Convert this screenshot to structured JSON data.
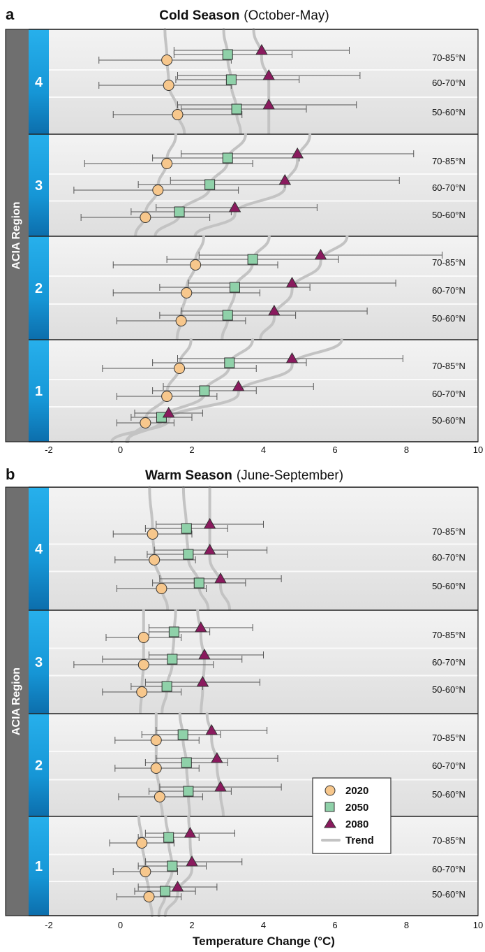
{
  "chart_data": [
    {
      "panel": "a",
      "type": "scatter",
      "title": "Cold Season",
      "subtitle": "(October-May)",
      "xlabel": "",
      "ylabel": "ACIA Region",
      "xlim": [
        -2,
        10
      ],
      "xticks": [
        -2,
        0,
        2,
        4,
        6,
        8,
        10
      ],
      "regions": [
        {
          "region": "4",
          "rows": [
            {
              "label": "70-85°N",
              "2020": {
                "value": 1.3,
                "low": -0.6,
                "high": 3.1
              },
              "2050": {
                "value": 3.0,
                "low": 1.5,
                "high": 4.8
              },
              "2080": {
                "value": 3.95,
                "low": 1.5,
                "high": 6.4
              }
            },
            {
              "label": "60-70°N",
              "2020": {
                "value": 1.35,
                "low": -0.6,
                "high": 3.1
              },
              "2050": {
                "value": 3.1,
                "low": 1.55,
                "high": 5.0
              },
              "2080": {
                "value": 4.15,
                "low": 1.6,
                "high": 6.7
              }
            },
            {
              "label": "50-60°N",
              "2020": {
                "value": 1.6,
                "low": -0.2,
                "high": 3.4
              },
              "2050": {
                "value": 3.25,
                "low": 1.7,
                "high": 5.2
              },
              "2080": {
                "value": 4.15,
                "low": 1.6,
                "high": 6.6
              }
            }
          ]
        },
        {
          "region": "3",
          "rows": [
            {
              "label": "70-85°N",
              "2020": {
                "value": 1.3,
                "low": -1.0,
                "high": 3.7
              },
              "2050": {
                "value": 3.0,
                "low": 0.9,
                "high": 5.0
              },
              "2080": {
                "value": 4.95,
                "low": 1.7,
                "high": 8.2
              }
            },
            {
              "label": "60-70°N",
              "2020": {
                "value": 1.05,
                "low": -1.3,
                "high": 3.3
              },
              "2050": {
                "value": 2.5,
                "low": 0.5,
                "high": 4.6
              },
              "2080": {
                "value": 4.6,
                "low": 1.4,
                "high": 7.8
              }
            },
            {
              "label": "50-60°N",
              "2020": {
                "value": 0.7,
                "low": -1.1,
                "high": 2.5
              },
              "2050": {
                "value": 1.65,
                "low": 0.3,
                "high": 3.1
              },
              "2080": {
                "value": 3.2,
                "low": 1.0,
                "high": 5.5
              }
            }
          ]
        },
        {
          "region": "2",
          "rows": [
            {
              "label": "70-85°N",
              "2020": {
                "value": 2.1,
                "low": -0.2,
                "high": 4.4
              },
              "2050": {
                "value": 3.7,
                "low": 1.3,
                "high": 6.1
              },
              "2080": {
                "value": 5.6,
                "low": 2.2,
                "high": 9.0
              }
            },
            {
              "label": "60-70°N",
              "2020": {
                "value": 1.85,
                "low": -0.2,
                "high": 3.9
              },
              "2050": {
                "value": 3.2,
                "low": 1.1,
                "high": 5.3
              },
              "2080": {
                "value": 4.8,
                "low": 1.9,
                "high": 7.7
              }
            },
            {
              "label": "50-60°N",
              "2020": {
                "value": 1.7,
                "low": -0.1,
                "high": 3.5
              },
              "2050": {
                "value": 3.0,
                "low": 1.1,
                "high": 4.9
              },
              "2080": {
                "value": 4.3,
                "low": 1.7,
                "high": 6.9
              }
            }
          ]
        },
        {
          "region": "1",
          "rows": [
            {
              "label": "70-85°N",
              "2020": {
                "value": 1.65,
                "low": -0.5,
                "high": 3.8
              },
              "2050": {
                "value": 3.05,
                "low": 0.9,
                "high": 5.2
              },
              "2080": {
                "value": 4.8,
                "low": 1.6,
                "high": 7.9
              }
            },
            {
              "label": "60-70°N",
              "2020": {
                "value": 1.3,
                "low": -0.1,
                "high": 2.7
              },
              "2050": {
                "value": 2.35,
                "low": 0.9,
                "high": 3.8
              },
              "2080": {
                "value": 3.3,
                "low": 1.2,
                "high": 5.4
              }
            },
            {
              "label": "50-60°N",
              "2020": {
                "value": 0.7,
                "low": -0.1,
                "high": 1.5
              },
              "2050": {
                "value": 1.15,
                "low": 0.3,
                "high": 2.0
              },
              "2080": {
                "value": 1.35,
                "low": 0.4,
                "high": 2.3
              }
            }
          ]
        }
      ]
    },
    {
      "panel": "b",
      "type": "scatter",
      "title": "Warm Season",
      "subtitle": "(June-September)",
      "xlabel": "Temperature Change (°C)",
      "ylabel": "ACIA Region",
      "xlim": [
        -2,
        10
      ],
      "xticks": [
        -2,
        0,
        2,
        4,
        6,
        8,
        10
      ],
      "legend": {
        "position": "right",
        "entries": [
          "2020",
          "2050",
          "2080",
          "Trend"
        ]
      },
      "regions": [
        {
          "region": "4",
          "rows": [
            {
              "label": "70-85°N",
              "2020": {
                "value": 0.9,
                "low": -0.2,
                "high": 2.0
              },
              "2050": {
                "value": 1.85,
                "low": 0.7,
                "high": 3.0
              },
              "2080": {
                "value": 2.5,
                "low": 1.0,
                "high": 4.0
              }
            },
            {
              "label": "60-70°N",
              "2020": {
                "value": 0.95,
                "low": -0.15,
                "high": 2.1
              },
              "2050": {
                "value": 1.9,
                "low": 0.75,
                "high": 3.0
              },
              "2080": {
                "value": 2.5,
                "low": 0.95,
                "high": 4.1
              }
            },
            {
              "label": "50-60°N",
              "2020": {
                "value": 1.15,
                "low": -0.1,
                "high": 2.4
              },
              "2050": {
                "value": 2.2,
                "low": 0.9,
                "high": 3.5
              },
              "2080": {
                "value": 2.8,
                "low": 1.1,
                "high": 4.5
              }
            }
          ]
        },
        {
          "region": "3",
          "rows": [
            {
              "label": "70-85°N",
              "2020": {
                "value": 0.65,
                "low": -0.4,
                "high": 1.7
              },
              "2050": {
                "value": 1.5,
                "low": 0.8,
                "high": 2.5
              },
              "2080": {
                "value": 2.25,
                "low": 0.8,
                "high": 3.7
              }
            },
            {
              "label": "60-70°N",
              "2020": {
                "value": 0.65,
                "low": -1.3,
                "high": 2.6
              },
              "2050": {
                "value": 1.45,
                "low": -0.5,
                "high": 3.4
              },
              "2080": {
                "value": 2.35,
                "low": 0.8,
                "high": 4.0
              }
            },
            {
              "label": "50-60°N",
              "2020": {
                "value": 0.6,
                "low": -0.5,
                "high": 1.7
              },
              "2050": {
                "value": 1.3,
                "low": 0.3,
                "high": 2.3
              },
              "2080": {
                "value": 2.3,
                "low": 0.7,
                "high": 3.9
              }
            }
          ]
        },
        {
          "region": "2",
          "rows": [
            {
              "label": "70-85°N",
              "2020": {
                "value": 1.0,
                "low": -0.15,
                "high": 2.2
              },
              "2050": {
                "value": 1.75,
                "low": 0.6,
                "high": 2.8
              },
              "2080": {
                "value": 2.55,
                "low": 1.0,
                "high": 4.1
              }
            },
            {
              "label": "60-70°N",
              "2020": {
                "value": 1.0,
                "low": -0.15,
                "high": 2.2
              },
              "2050": {
                "value": 1.85,
                "low": 0.7,
                "high": 3.0
              },
              "2080": {
                "value": 2.7,
                "low": 1.0,
                "high": 4.4
              }
            },
            {
              "label": "50-60°N",
              "2020": {
                "value": 1.1,
                "low": -0.05,
                "high": 2.3
              },
              "2050": {
                "value": 1.9,
                "low": 0.8,
                "high": 3.1
              },
              "2080": {
                "value": 2.8,
                "low": 1.1,
                "high": 4.5
              }
            }
          ]
        },
        {
          "region": "1",
          "rows": [
            {
              "label": "70-85°N",
              "2020": {
                "value": 0.6,
                "low": -0.3,
                "high": 1.5
              },
              "2050": {
                "value": 1.35,
                "low": 0.5,
                "high": 2.2
              },
              "2080": {
                "value": 1.95,
                "low": 0.7,
                "high": 3.2
              }
            },
            {
              "label": "60-70°N",
              "2020": {
                "value": 0.7,
                "low": -0.2,
                "high": 1.6
              },
              "2050": {
                "value": 1.45,
                "low": 0.5,
                "high": 2.4
              },
              "2080": {
                "value": 2.0,
                "low": 0.7,
                "high": 3.4
              }
            },
            {
              "label": "50-60°N",
              "2020": {
                "value": 0.8,
                "low": -0.1,
                "high": 1.7
              },
              "2050": {
                "value": 1.25,
                "low": 0.4,
                "high": 2.1
              },
              "2080": {
                "value": 1.6,
                "low": 0.5,
                "high": 2.7
              }
            }
          ]
        }
      ]
    }
  ],
  "colors": {
    "c2020": "#f7c78c",
    "c2050": "#8fd1a9",
    "c2080": "#8a1a5e",
    "trend": "#c3c3c3",
    "region_bar": "#1a9fdc",
    "axis_bar": "#6f6f6f",
    "panel_bg": "#ebebeb"
  }
}
